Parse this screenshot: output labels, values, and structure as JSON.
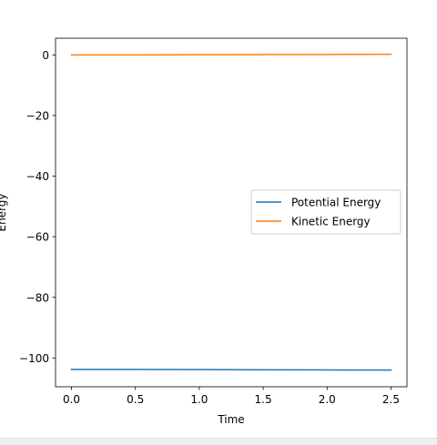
{
  "chart_data": {
    "type": "line",
    "title": "",
    "xlabel": "Time",
    "ylabel": "Energy",
    "xlim": [
      -0.125,
      2.625
    ],
    "ylim": [
      -109.5,
      5.5
    ],
    "xticks": [
      0.0,
      0.5,
      1.0,
      1.5,
      2.0,
      2.5
    ],
    "xtick_labels": [
      "0.0",
      "0.5",
      "1.0",
      "1.5",
      "2.0",
      "2.5"
    ],
    "yticks": [
      0,
      -20,
      -40,
      -60,
      -80,
      -100
    ],
    "ytick_labels": [
      "0",
      "−20",
      "−40",
      "−60",
      "−80",
      "−100"
    ],
    "grid": false,
    "legend_position": "center-right",
    "series": [
      {
        "name": "Potential Energy",
        "color": "#1f77b4",
        "x": [
          0.0,
          0.5,
          1.0,
          1.5,
          2.0,
          2.5
        ],
        "y": [
          -103.8,
          -103.8,
          -103.85,
          -103.9,
          -103.95,
          -104.0
        ]
      },
      {
        "name": "Kinetic Energy",
        "color": "#ff7f0e",
        "x": [
          0.0,
          0.5,
          1.0,
          1.5,
          2.0,
          2.5
        ],
        "y": [
          0.0,
          0.0,
          0.05,
          0.1,
          0.15,
          0.2
        ]
      }
    ]
  }
}
